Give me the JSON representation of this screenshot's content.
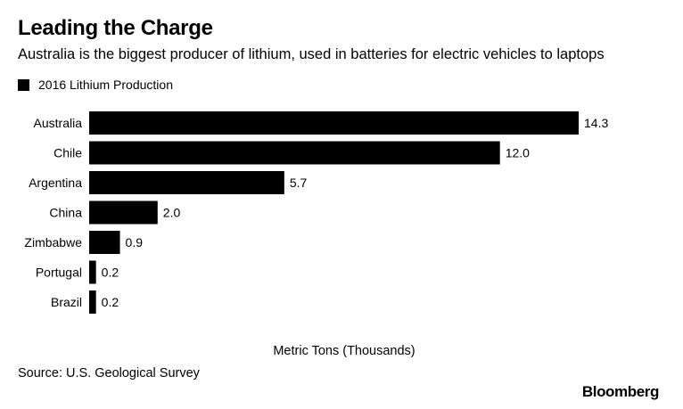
{
  "header": {
    "title": "Leading the Charge",
    "subtitle": "Australia is the biggest producer of lithium, used in batteries for electric vehicles to laptops"
  },
  "footer": {
    "source": "Source: U.S. Geological Survey",
    "brand": "Bloomberg"
  },
  "colors": {
    "bar": "#000000",
    "text": "#000000",
    "background": "#ffffff"
  },
  "chart_data": {
    "type": "bar",
    "orientation": "horizontal",
    "title": "Leading the Charge",
    "subtitle": "Australia is the biggest producer of lithium, used in batteries for electric vehicles to laptops",
    "xlabel": "Metric Tons (Thousands)",
    "ylabel": "",
    "categories": [
      "Australia",
      "Chile",
      "Argentina",
      "China",
      "Zimbabwe",
      "Portugal",
      "Brazil"
    ],
    "series": [
      {
        "name": "2016 Lithium Production",
        "values": [
          14.3,
          12.0,
          5.7,
          2.0,
          0.9,
          0.2,
          0.2
        ],
        "labels": [
          "14.3",
          "12.0",
          "5.7",
          "2.0",
          "0.9",
          "0.2",
          "0.2"
        ]
      }
    ],
    "xlim": [
      0,
      14.3
    ],
    "grid": false,
    "legend": "top-left"
  }
}
